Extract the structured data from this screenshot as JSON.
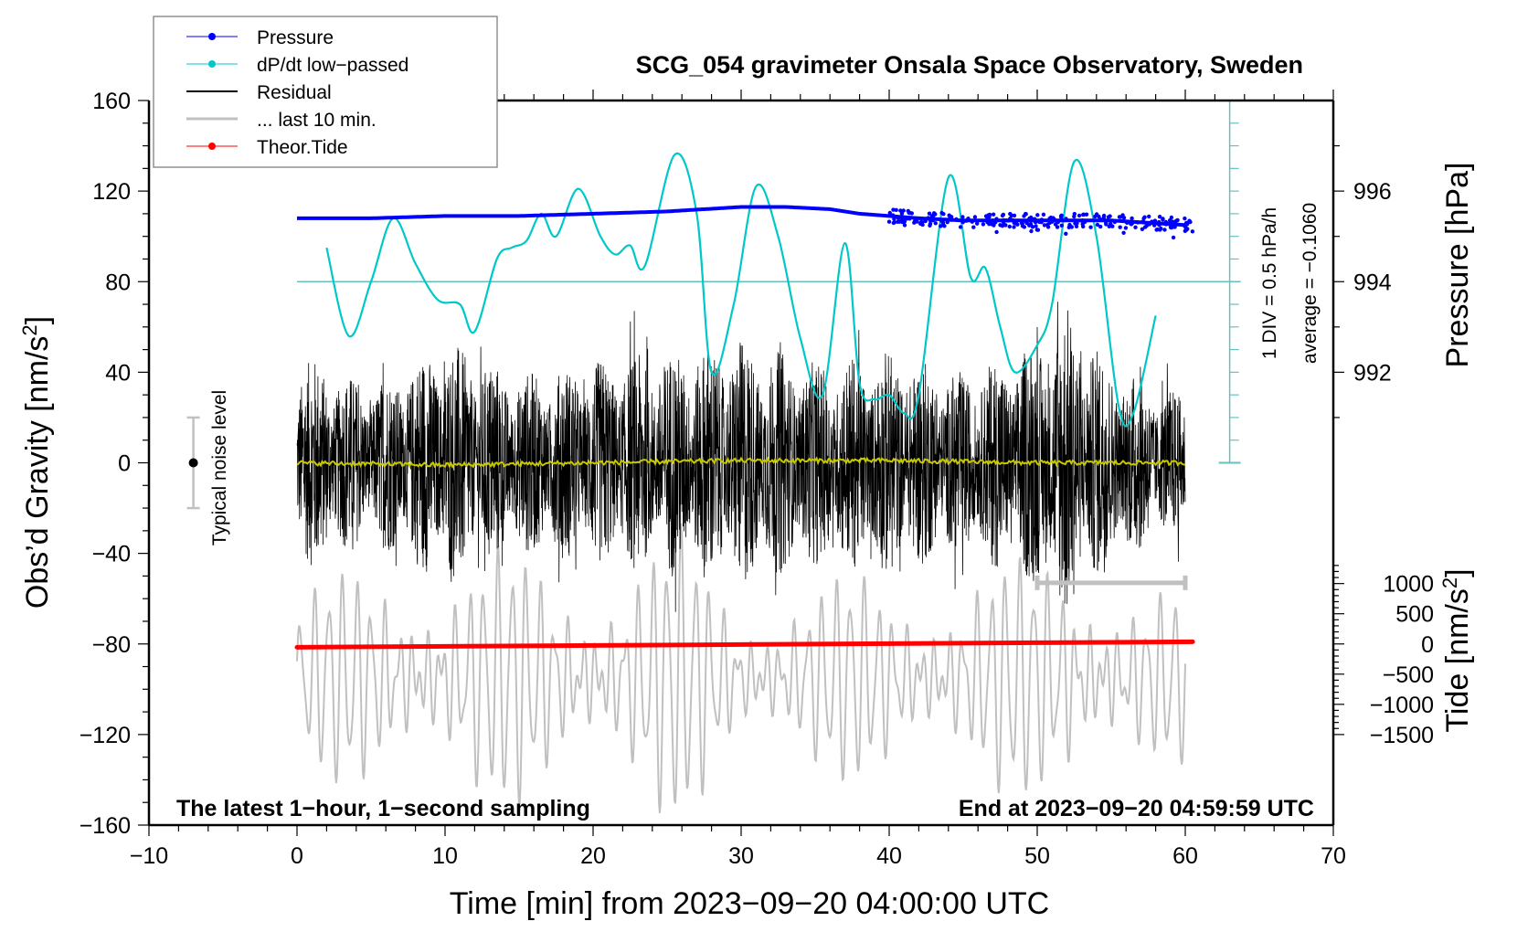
{
  "chart_data": {
    "type": "line",
    "title": "SCG_054 gravimeter Onsala Space Observatory, Sweden",
    "xlabel": "Time [min] from 2023−09−20 04:00:00 UTC",
    "ylabel": "Obs’d Gravity [nm/s²]",
    "ylabel_main": "Obs’d Gravity [nm/s",
    "ylabel_sup": "2",
    "ylabel_end": "]",
    "y2label": "Pressure [hPa]",
    "y3label_main": "Tide [nm/s",
    "y3label_sup": "2",
    "y3label_end": "]",
    "xlim": [
      -10,
      70
    ],
    "ylim": [
      -160,
      160
    ],
    "x_ticks": [
      -10,
      0,
      10,
      20,
      30,
      40,
      50,
      60,
      70
    ],
    "x_tick_labels": [
      "−10",
      "0",
      "10",
      "20",
      "30",
      "40",
      "50",
      "60",
      "70"
    ],
    "y_ticks": [
      160,
      120,
      80,
      40,
      0,
      -40,
      -80,
      -120,
      -160
    ],
    "y_tick_labels": [
      "160",
      "120",
      "80",
      "40",
      "0",
      "−40",
      "−80",
      "−120",
      "−160"
    ],
    "pressure_ticks": [
      996,
      994,
      992
    ],
    "pressure_tick_labels": [
      "996",
      "994",
      "992"
    ],
    "tide_ticks": [
      1000,
      500,
      0,
      -500,
      -1000,
      -1500
    ],
    "tide_tick_labels": [
      "1000",
      "500",
      "0",
      "−500",
      "−1000",
      "−1500"
    ],
    "grid": false,
    "legend_position": "top-left",
    "legend": [
      {
        "label": "Pressure",
        "color": "#0000ff",
        "marker": "dot"
      },
      {
        "label": "dP/dt low−passed",
        "color": "#00c8c8",
        "marker": "dot"
      },
      {
        "label": "Residual",
        "color": "#000000",
        "marker": "none"
      },
      {
        "label": "... last 10 min.",
        "color": "#c0c0c0",
        "marker": "none"
      },
      {
        "label": "Theor.Tide",
        "color": "#ff0000",
        "marker": "dot"
      }
    ],
    "annotations": {
      "bottom_left": "The latest 1−hour, 1−second sampling",
      "bottom_right": "End at 2023−09−20 04:59:59 UTC",
      "noise_label": "Typical noise level",
      "div_label": "1 DIV = 0.5 hPa/h",
      "average_label": "average = −0.1060"
    },
    "noise_bar": {
      "x": -7,
      "center": 0,
      "half_range": 20
    },
    "last10_bar": {
      "x_start": 50,
      "x_end": 60,
      "y": -53
    },
    "colors": {
      "pressure": "#0000ff",
      "dpdt": "#00c8c8",
      "dpdt_axis": "#66c0bc",
      "residual": "#000000",
      "residual_mean": "#c8c800",
      "last10": "#c0c0c0",
      "tide": "#ff0000"
    },
    "series": [
      {
        "name": "Pressure",
        "units": "hPa",
        "x": [
          0,
          5,
          10,
          15,
          20,
          25,
          30,
          33,
          36,
          38,
          40,
          42,
          45,
          50,
          55,
          60
        ],
        "values": [
          995.4,
          995.4,
          995.45,
          995.45,
          995.5,
          995.55,
          995.65,
          995.65,
          995.6,
          995.5,
          995.45,
          995.4,
          995.35,
          995.35,
          995.35,
          995.25
        ]
      },
      {
        "name": "dP/dt low-passed",
        "units": "plot units (gravity scale)",
        "x": [
          2,
          3.5,
          5,
          6.5,
          8,
          9.5,
          11,
          12,
          13.5,
          14.5,
          15.5,
          16.5,
          17.5,
          19,
          20.5,
          21.5,
          22.5,
          23.5,
          25.5,
          27,
          28,
          29.5,
          31,
          32.5,
          34,
          35.5,
          37,
          38,
          39,
          40,
          41,
          42,
          44,
          45.5,
          46.5,
          47.5,
          48.5,
          50,
          51,
          52.5,
          54,
          55.5,
          56.5,
          58
        ],
        "values": [
          95,
          56,
          80,
          108,
          88,
          72,
          70,
          58,
          90,
          95,
          98,
          110,
          100,
          121,
          100,
          92,
          96,
          87,
          136,
          110,
          40,
          70,
          122,
          100,
          55,
          30,
          97,
          35,
          28,
          30,
          22,
          30,
          126,
          82,
          86,
          60,
          40,
          52,
          70,
          133,
          100,
          25,
          22,
          65
        ]
      },
      {
        "name": "Residual",
        "units": "nm/s²",
        "note": "1-second noisy residual, envelope approx ±40 with bursts to ±80",
        "x": [
          0,
          5,
          10,
          15,
          20,
          25,
          30,
          35,
          40,
          45,
          50,
          52,
          55,
          60
        ],
        "envelope": [
          50,
          35,
          55,
          40,
          45,
          50,
          55,
          45,
          50,
          40,
          55,
          70,
          45,
          30
        ]
      },
      {
        "name": "Residual mean",
        "units": "nm/s²",
        "x": [
          0,
          10,
          20,
          30,
          40,
          50,
          60
        ],
        "values": [
          0,
          -1,
          0,
          1,
          1,
          0,
          0
        ]
      },
      {
        "name": "... last 10 min.",
        "units": "nm/s²",
        "note": "oscillating gray trace, amplitude approx ±45 around -90",
        "x": [
          0,
          10,
          20,
          26,
          30,
          40,
          50,
          52,
          60
        ],
        "amplitude": [
          35,
          50,
          45,
          55,
          35,
          40,
          45,
          55,
          30
        ],
        "center": -95
      },
      {
        "name": "Theor.Tide",
        "units": "nm/s²",
        "x": [
          0,
          10,
          20,
          30,
          40,
          50,
          60.5
        ],
        "values": [
          -55,
          -40,
          -25,
          -10,
          5,
          20,
          35
        ]
      }
    ]
  }
}
